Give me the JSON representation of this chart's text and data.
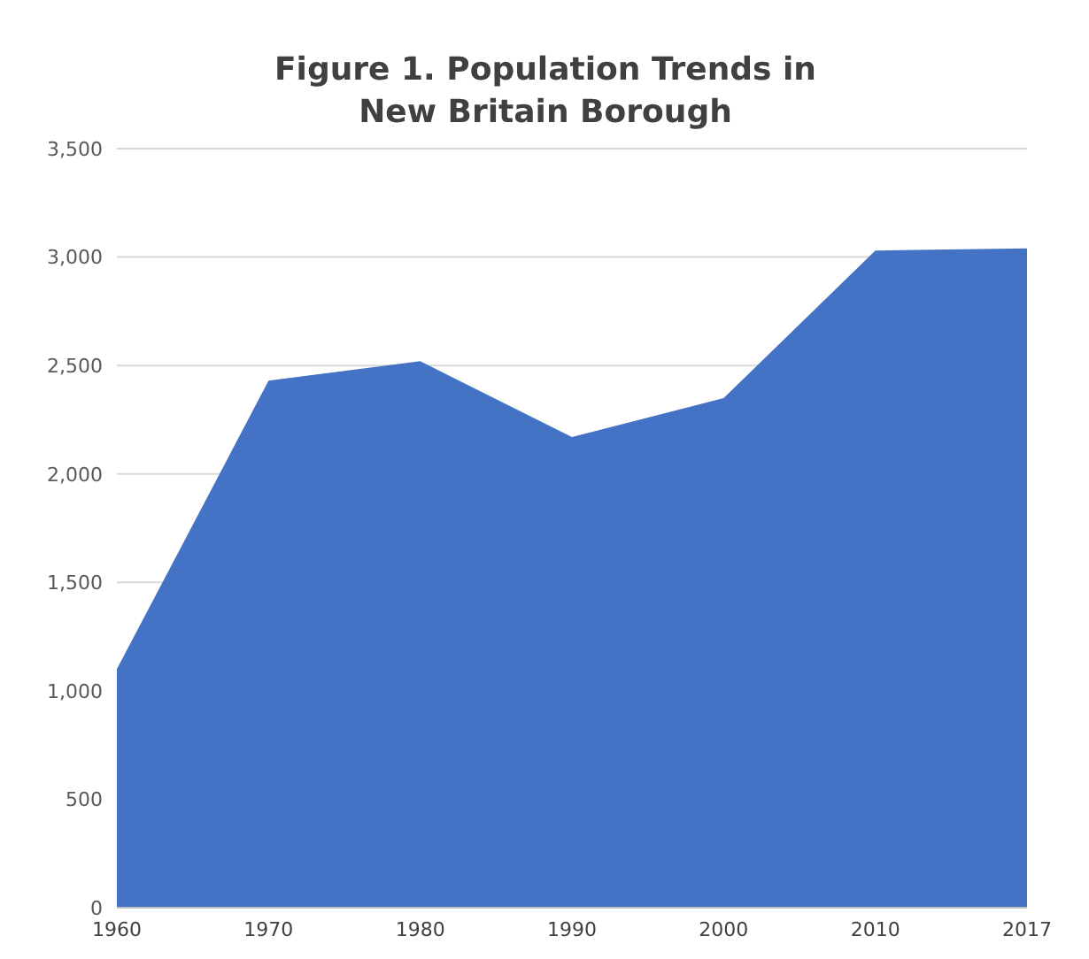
{
  "chart_data": {
    "type": "area",
    "title": "Figure 1. Population Trends in\nNew Britain Borough",
    "categories": [
      "1960",
      "1970",
      "1980",
      "1990",
      "2000",
      "2010",
      "2017"
    ],
    "values": [
      1100,
      2430,
      2520,
      2170,
      2350,
      3030,
      3040
    ],
    "color": "#4472c4",
    "ylim": [
      0,
      3500
    ],
    "yticks": [
      0,
      500,
      {
        "value": 1000,
        "label": "1,000"
      },
      {
        "value": 1500,
        "label": "1,500"
      },
      {
        "value": 2000,
        "label": "2,000"
      },
      {
        "value": 2500,
        "label": "2,500"
      },
      {
        "value": 3000,
        "label": "3,000"
      },
      {
        "value": 3500,
        "label": "3,500"
      }
    ],
    "grid": "y",
    "legend": false
  }
}
